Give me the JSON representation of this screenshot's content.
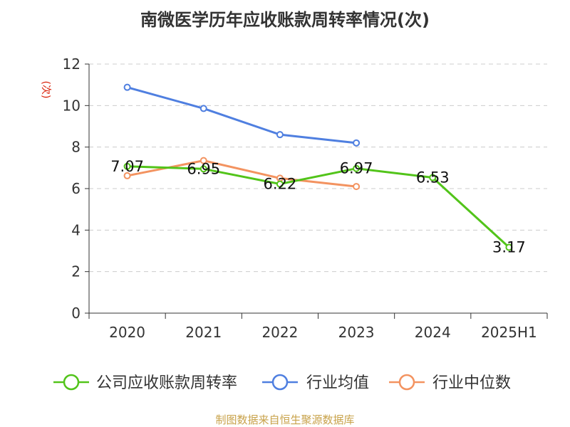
{
  "title": "南微医学历年应收账款周转率情况(次)",
  "footer": "制图数据来自恒生聚源数据库",
  "colors": {
    "company": "#52c41a",
    "industry_avg": "#4f7fe0",
    "industry_median": "#f39360",
    "grid": "#cccccc",
    "axis": "#333333",
    "ylabel": "#d81e06"
  },
  "chart_data": {
    "type": "line",
    "title": "南微医学历年应收账款周转率情况(次)",
    "xlabel": "",
    "ylabel": "(次)",
    "categories": [
      "2020",
      "2021",
      "2022",
      "2023",
      "2024",
      "2025H1"
    ],
    "ylim": [
      0,
      12
    ],
    "yticks": [
      "0",
      "2",
      "4",
      "6",
      "8",
      "10",
      "12"
    ],
    "grid": "horizontal dashed",
    "legend_position": "bottom",
    "series": [
      {
        "name": "公司应收账款周转率",
        "color": "#52c41a",
        "values": [
          7.07,
          6.95,
          6.22,
          6.97,
          6.53,
          3.17
        ],
        "labels": [
          "7.07",
          "6.95",
          "6.22",
          "6.97",
          "6.53",
          "3.17"
        ]
      },
      {
        "name": "行业均值",
        "color": "#4f7fe0",
        "values": [
          10.88,
          9.86,
          8.6,
          8.2,
          null,
          null
        ]
      },
      {
        "name": "行业中位数",
        "color": "#f39360",
        "values": [
          6.62,
          7.35,
          6.5,
          6.1,
          null,
          null
        ]
      }
    ]
  }
}
